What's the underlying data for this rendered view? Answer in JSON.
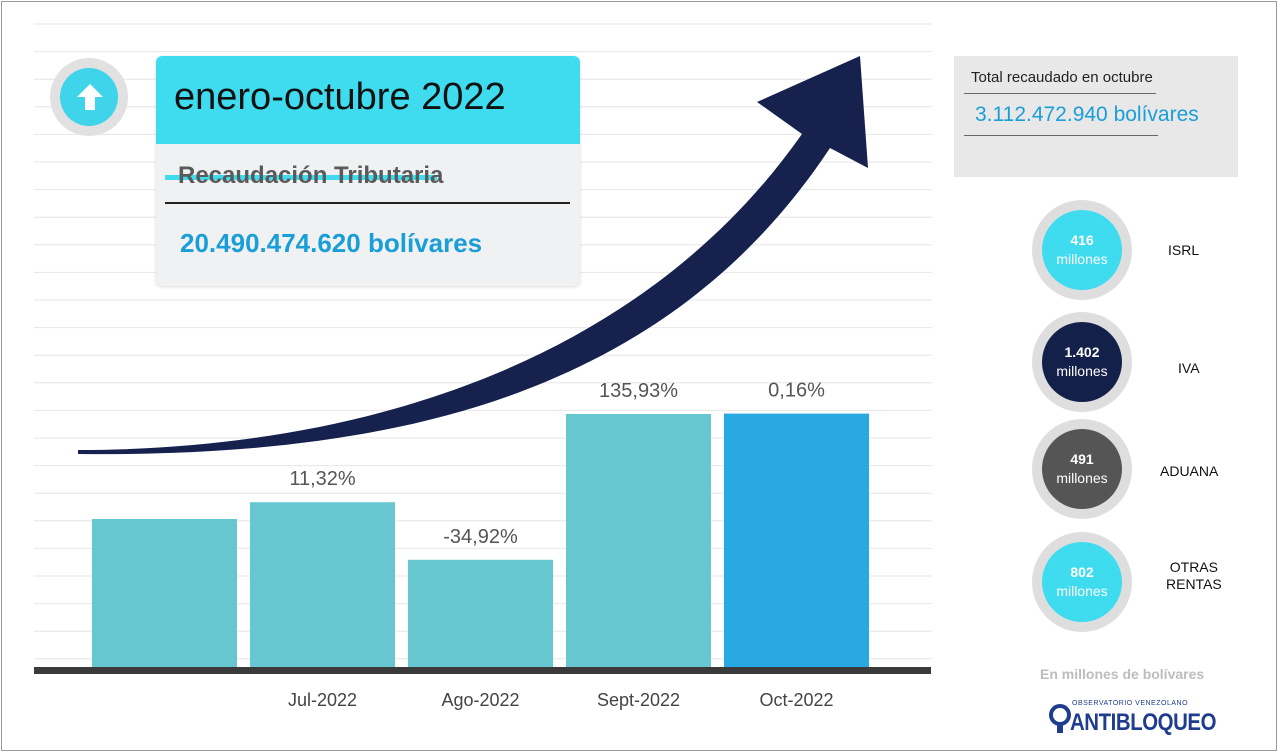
{
  "header": {
    "title": "enero-octubre 2022",
    "subtitle": "Recaudación Tributaria",
    "total_amount": "20.490.474.620 bolívares",
    "icon": "arrow-up-icon"
  },
  "october_card": {
    "label": "Total recaudado en octubre",
    "value": "3.112.472.940 bolívares"
  },
  "taxes": [
    {
      "value": "416",
      "unit": "millones",
      "name": "ISRL",
      "color": "#3fdcf0"
    },
    {
      "value": "1.402",
      "unit": "millones",
      "name": "IVA",
      "color": "#13204a"
    },
    {
      "value": "491",
      "unit": "millones",
      "name": "ADUANA",
      "color": "#555555"
    },
    {
      "value": "802",
      "unit": "millones",
      "name": "OTRAS\nRENTAS",
      "color": "#3fdcf0"
    }
  ],
  "note": "En millones de bolívares",
  "logo": {
    "top": "OBSERVATORIO VENEZOLANO",
    "main": "ANTIBLOQUEO"
  },
  "colors": {
    "bar": "#67c7d0",
    "bar_highlight": "#29a9e1",
    "arrow": "#16214e",
    "baseline": "#3a3a3a"
  },
  "chart_data": {
    "type": "bar",
    "categories": [
      "",
      "Jul-2022",
      "Ago-2022",
      "Sept-2022",
      "Oct-2022"
    ],
    "values": [
      1.0,
      1.1132,
      0.7245,
      1.7093,
      1.7121
    ],
    "data_labels": [
      "",
      "11,32%",
      "-34,92%",
      "135,93%",
      "0,16%"
    ],
    "highlight_index": 4,
    "ylim": [
      0,
      2.5
    ],
    "grid": true,
    "legend": "none",
    "trend_arrow": true
  }
}
